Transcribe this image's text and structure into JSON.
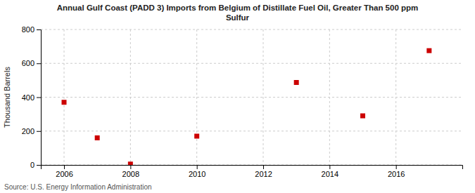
{
  "chart_data": {
    "type": "scatter",
    "title": "Annual Gulf Coast (PADD 3) Imports from Belgium of Distillate Fuel Oil, Greater Than 500 ppm\nSulfur",
    "y_label": "Thousand Barrels",
    "annotations": [
      "Source: U.S. Energy Information Administration"
    ],
    "x": [
      2006,
      2007,
      2008,
      2010,
      2013,
      2015,
      2017
    ],
    "y": [
      370,
      160,
      5,
      170,
      487,
      290,
      675
    ],
    "color": "#cc0000",
    "marker": "square",
    "xlim": [
      2005.3,
      2018.0
    ],
    "ylim": [
      0,
      800
    ],
    "xticks": [
      2006,
      2008,
      2010,
      2012,
      2014,
      2016
    ],
    "yticks": [
      0,
      200,
      400,
      600,
      800
    ],
    "grid": true
  }
}
